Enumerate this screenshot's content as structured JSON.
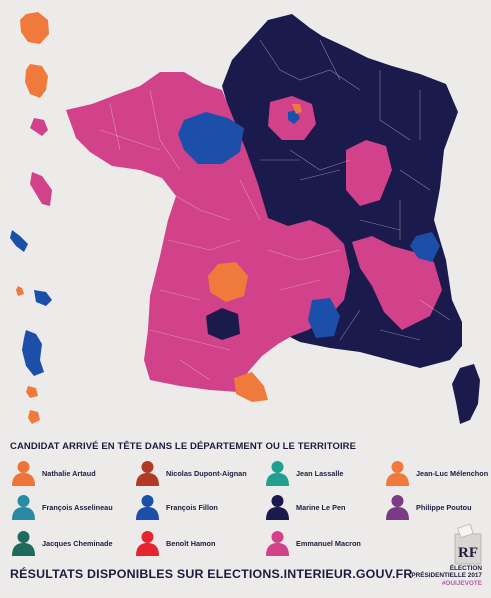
{
  "legend": {
    "title": "CANDIDAT ARRIVÉ EN TÊTE DANS LE DÉPARTEMENT OU LE TERRITOIRE",
    "candidates": [
      {
        "name": "Nathalie Artaud",
        "color": "#ee7437"
      },
      {
        "name": "Nicolas Dupont-Aignan",
        "color": "#b23a25"
      },
      {
        "name": "Jean Lassalle",
        "color": "#21a08f"
      },
      {
        "name": "Jean-Luc Mélenchon",
        "color": "#ef7a3c"
      },
      {
        "name": "François Asselineau",
        "color": "#2a8aa3"
      },
      {
        "name": "François Fillon",
        "color": "#1b4faa"
      },
      {
        "name": "Marine Le Pen",
        "color": "#1b1a4c"
      },
      {
        "name": "Philippe Poutou",
        "color": "#7b3a86"
      },
      {
        "name": "Jacques Cheminade",
        "color": "#1f6b5b"
      },
      {
        "name": "Benoît Hamon",
        "color": "#e4252d"
      },
      {
        "name": "Emmanuel Macron",
        "color": "#d2428a"
      }
    ]
  },
  "footer": {
    "results_text": "RÉSULTATS DISPONIBLES SUR ELECTIONS.INTERIEUR.GOUV.FR"
  },
  "badge": {
    "line1": "ÉLECTION",
    "line2": "PRÉSIDENTIELLE 2017",
    "hashtag": "#OUIJEVOTE",
    "logo_text": "RF"
  },
  "map_colors": {
    "macron": "#d2428a",
    "le_pen": "#1b1a4c",
    "fillon": "#1b4faa",
    "melenchon": "#ef7a3c",
    "border": "#e6d0dc"
  }
}
